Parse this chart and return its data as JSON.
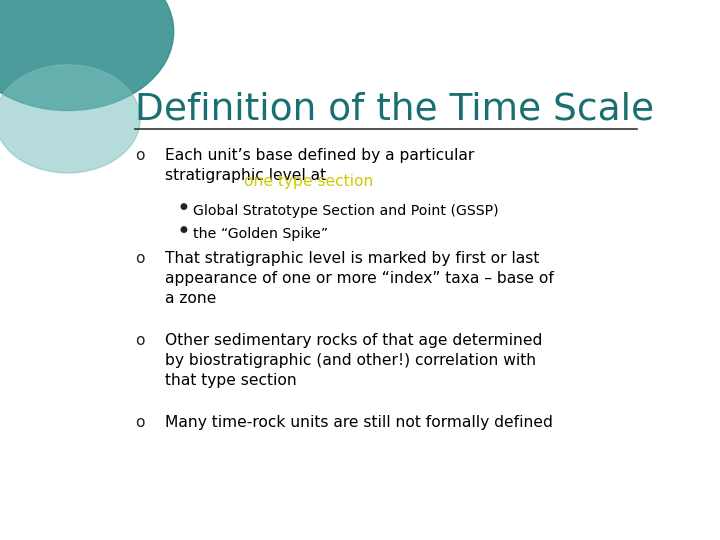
{
  "title": "Definition of the Time Scale",
  "title_color": "#1a7070",
  "title_fontsize": 27,
  "background_color": "#ffffff",
  "line_color": "#333333",
  "bullet_color": "#222222",
  "text_color": "#000000",
  "highlight_color": "#cccc00",
  "bullets": [
    {
      "text_parts": [
        {
          "text": "Each unit’s base defined by a particular\nstratigraphic level at ",
          "color": "#000000"
        },
        {
          "text": "one type section",
          "color": "#cccc00"
        }
      ],
      "sub_bullets": [
        "Global Stratotype Section and Point (GSSP)",
        "the “Golden Spike”"
      ]
    },
    {
      "text_parts": [
        {
          "text": "That stratigraphic level is marked by first or last\nappearance of one or more “index” taxa – base of\na zone",
          "color": "#000000"
        }
      ],
      "sub_bullets": []
    },
    {
      "text_parts": [
        {
          "text": "Other sedimentary rocks of that age determined\nby biostratigraphic (and other!) correlation with\nthat type section",
          "color": "#000000"
        }
      ],
      "sub_bullets": []
    },
    {
      "text_parts": [
        {
          "text": "Many time-rock units are still not formally defined",
          "color": "#000000"
        }
      ],
      "sub_bullets": []
    }
  ],
  "circle_color1": "#2e8b8b",
  "circle_color2": "#7bbfbf",
  "figsize": [
    7.2,
    5.4
  ],
  "dpi": 100
}
